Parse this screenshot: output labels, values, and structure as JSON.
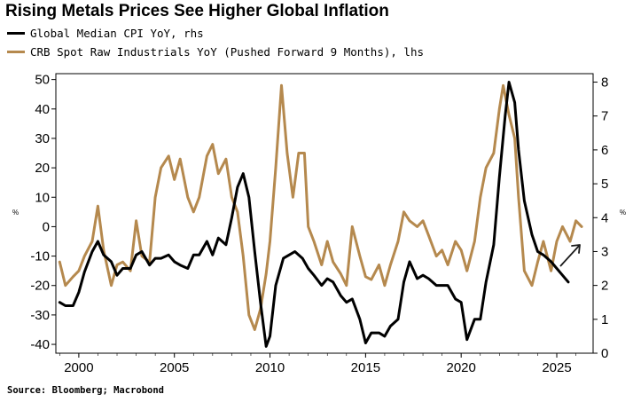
{
  "title": "Rising Metals Prices See Higher Global Inflation",
  "source": "Source: Bloomberg; Macrobond",
  "colors": {
    "cpi": "#000000",
    "crb": "#b5894e",
    "arrow": "#1a1a1a"
  },
  "chart_data": {
    "type": "line",
    "x_ticks": [
      2000,
      2005,
      2010,
      2015,
      2020,
      2025
    ],
    "xlim": [
      1998.8,
      2026.9
    ],
    "left_axis": {
      "unit": "%",
      "ticks": [
        -40,
        -30,
        -20,
        -10,
        0,
        10,
        20,
        30,
        40,
        50
      ],
      "ylim": [
        -43,
        52
      ]
    },
    "right_axis": {
      "unit": "%",
      "ticks": [
        0,
        1,
        2,
        3,
        4,
        5,
        6,
        7,
        8
      ],
      "ylim": [
        0,
        8.25
      ]
    },
    "grid": false,
    "legend": "top-left",
    "series": [
      {
        "name": "Global Median CPI YoY, rhs",
        "axis": "right",
        "color": "#000000",
        "x": [
          1999.0,
          1999.3,
          1999.7,
          2000.0,
          2000.3,
          2000.7,
          2001.0,
          2001.3,
          2001.7,
          2002.0,
          2002.3,
          2002.7,
          2003.0,
          2003.3,
          2003.7,
          2004.0,
          2004.3,
          2004.7,
          2005.0,
          2005.3,
          2005.7,
          2006.0,
          2006.3,
          2006.7,
          2007.0,
          2007.3,
          2007.7,
          2008.0,
          2008.3,
          2008.6,
          2008.9,
          2009.2,
          2009.5,
          2009.8,
          2010.0,
          2010.3,
          2010.7,
          2011.0,
          2011.3,
          2011.7,
          2012.0,
          2012.3,
          2012.7,
          2013.0,
          2013.3,
          2013.7,
          2014.0,
          2014.3,
          2014.7,
          2015.0,
          2015.3,
          2015.7,
          2016.0,
          2016.3,
          2016.7,
          2017.0,
          2017.3,
          2017.7,
          2018.0,
          2018.3,
          2018.7,
          2019.0,
          2019.3,
          2019.7,
          2020.0,
          2020.3,
          2020.7,
          2021.0,
          2021.3,
          2021.7,
          2022.0,
          2022.3,
          2022.5,
          2022.8,
          2023.0,
          2023.3,
          2023.7,
          2024.0,
          2024.3,
          2024.7,
          2025.0,
          2025.3,
          2025.6
        ],
        "y": [
          1.5,
          1.4,
          1.4,
          1.8,
          2.4,
          3.0,
          3.3,
          2.9,
          2.7,
          2.3,
          2.5,
          2.5,
          2.9,
          3.0,
          2.6,
          2.8,
          2.8,
          2.9,
          2.7,
          2.6,
          2.5,
          2.9,
          2.9,
          3.3,
          2.9,
          3.4,
          3.2,
          4.0,
          4.9,
          5.3,
          4.6,
          3.0,
          1.5,
          0.2,
          0.5,
          2.0,
          2.8,
          2.9,
          3.0,
          2.8,
          2.5,
          2.3,
          2.0,
          2.2,
          2.1,
          1.7,
          1.5,
          1.6,
          1.0,
          0.3,
          0.6,
          0.6,
          0.5,
          0.8,
          1.0,
          2.1,
          2.7,
          2.2,
          2.3,
          2.2,
          2.0,
          2.0,
          2.0,
          1.6,
          1.5,
          0.4,
          1.0,
          1.0,
          2.1,
          3.2,
          5.2,
          7.0,
          8.0,
          7.4,
          6.0,
          4.5,
          3.5,
          3.0,
          2.9,
          2.7,
          2.5,
          2.3,
          2.1
        ]
      },
      {
        "name": "CRB Spot Raw Industrials YoY (Pushed Forward 9 Months), lhs",
        "axis": "left",
        "color": "#b5894e",
        "x": [
          1999.0,
          1999.3,
          1999.7,
          2000.0,
          2000.3,
          2000.7,
          2001.0,
          2001.3,
          2001.7,
          2002.0,
          2002.3,
          2002.7,
          2003.0,
          2003.3,
          2003.7,
          2004.0,
          2004.3,
          2004.7,
          2005.0,
          2005.3,
          2005.7,
          2006.0,
          2006.3,
          2006.7,
          2007.0,
          2007.3,
          2007.7,
          2008.0,
          2008.3,
          2008.6,
          2008.9,
          2009.2,
          2009.5,
          2009.8,
          2010.0,
          2010.3,
          2010.6,
          2010.9,
          2011.2,
          2011.5,
          2011.8,
          2012.0,
          2012.3,
          2012.7,
          2013.0,
          2013.3,
          2013.7,
          2014.0,
          2014.3,
          2014.7,
          2015.0,
          2015.3,
          2015.7,
          2016.0,
          2016.3,
          2016.7,
          2017.0,
          2017.3,
          2017.7,
          2018.0,
          2018.3,
          2018.7,
          2019.0,
          2019.3,
          2019.7,
          2020.0,
          2020.3,
          2020.7,
          2021.0,
          2021.3,
          2021.7,
          2022.0,
          2022.2,
          2022.5,
          2022.8,
          2023.0,
          2023.3,
          2023.7,
          2024.0,
          2024.3,
          2024.7,
          2025.0,
          2025.3,
          2025.7,
          2026.0,
          2026.3
        ],
        "y": [
          -12,
          -20,
          -17,
          -15,
          -10,
          -5,
          7,
          -8,
          -20,
          -13,
          -12,
          -15,
          2,
          -10,
          -12,
          10,
          20,
          24,
          16,
          23,
          10,
          5,
          10,
          24,
          28,
          18,
          23,
          10,
          5,
          -10,
          -30,
          -35,
          -28,
          -16,
          -5,
          20,
          48,
          25,
          10,
          25,
          25,
          0,
          -5,
          -13,
          -5,
          -12,
          -16,
          -20,
          0,
          -10,
          -17,
          -18,
          -13,
          -20,
          -13,
          -5,
          5,
          2,
          0,
          2,
          -3,
          -10,
          -8,
          -13,
          -5,
          -8,
          -15,
          -5,
          10,
          20,
          25,
          40,
          48,
          38,
          30,
          10,
          -15,
          -20,
          -12,
          -5,
          -15,
          -5,
          0,
          -5,
          2,
          0
        ]
      }
    ]
  }
}
